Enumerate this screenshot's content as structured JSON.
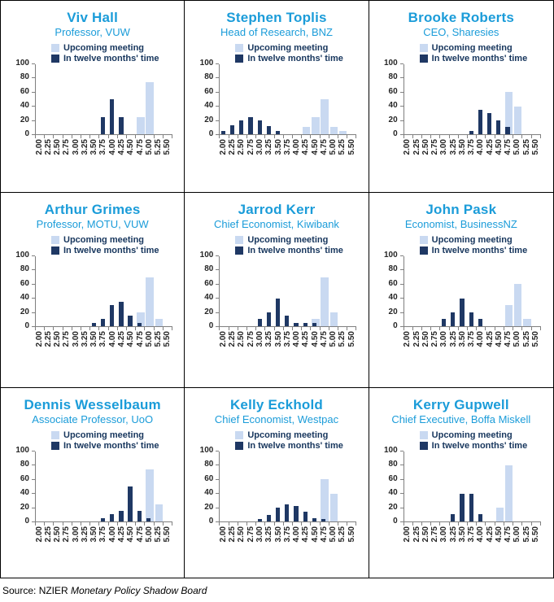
{
  "page": {
    "source_prefix": "Source: NZIER ",
    "source_title": "Monetary Policy Shadow Board"
  },
  "legend": {
    "series1": "Upcoming meeting",
    "series2": "In twelve months' time"
  },
  "colors": {
    "accent_blue": "#1B9CD9",
    "light_bar": "#C9D9F1",
    "dark_bar": "#1F3864",
    "legend_text": "#17365D",
    "axis_line": "#7F7F7F",
    "tick_text": "#262626"
  },
  "y_axis": {
    "ticks": [
      0,
      20,
      40,
      60,
      80,
      100
    ],
    "max": 100
  },
  "categories": [
    "2.00",
    "2.25",
    "2.50",
    "2.75",
    "3.00",
    "3.25",
    "3.50",
    "3.75",
    "4.00",
    "4.25",
    "4.50",
    "4.75",
    "5.00",
    "5.25",
    "5.50"
  ],
  "chart_data": [
    {
      "type": "bar",
      "title": "Viv Hall",
      "subtitle": "Professor, VUW",
      "ylim": [
        0,
        100
      ],
      "series": [
        {
          "name": "Upcoming meeting",
          "values": [
            0,
            0,
            0,
            0,
            0,
            0,
            0,
            0,
            0,
            0,
            0,
            25,
            75,
            0,
            0
          ]
        },
        {
          "name": "In twelve months' time",
          "values": [
            0,
            0,
            0,
            0,
            0,
            0,
            0,
            25,
            50,
            25,
            0,
            0,
            0,
            0,
            0
          ]
        }
      ]
    },
    {
      "type": "bar",
      "title": "Stephen Toplis",
      "subtitle": "Head of Research, BNZ",
      "ylim": [
        0,
        100
      ],
      "series": [
        {
          "name": "Upcoming meeting",
          "values": [
            0,
            0,
            0,
            0,
            0,
            0,
            0,
            0,
            0,
            10,
            25,
            50,
            10,
            5,
            0
          ]
        },
        {
          "name": "In twelve months' time",
          "values": [
            5,
            13,
            20,
            25,
            20,
            12,
            5,
            0,
            0,
            0,
            0,
            0,
            0,
            0,
            0
          ]
        }
      ]
    },
    {
      "type": "bar",
      "title": "Brooke Roberts",
      "subtitle": "CEO, Sharesies",
      "ylim": [
        0,
        100
      ],
      "series": [
        {
          "name": "Upcoming meeting",
          "values": [
            0,
            0,
            0,
            0,
            0,
            0,
            0,
            0,
            0,
            0,
            0,
            60,
            40,
            0,
            0
          ]
        },
        {
          "name": "In twelve months' time",
          "values": [
            0,
            0,
            0,
            0,
            0,
            0,
            0,
            5,
            35,
            30,
            20,
            10,
            0,
            0,
            0
          ]
        }
      ]
    },
    {
      "type": "bar",
      "title": "Arthur Grimes",
      "subtitle": "Professor, MOTU, VUW",
      "ylim": [
        0,
        100
      ],
      "series": [
        {
          "name": "Upcoming meeting",
          "values": [
            0,
            0,
            0,
            0,
            0,
            0,
            0,
            0,
            0,
            0,
            0,
            20,
            70,
            10,
            0
          ]
        },
        {
          "name": "In twelve months' time",
          "values": [
            0,
            0,
            0,
            0,
            0,
            0,
            5,
            10,
            30,
            35,
            15,
            5,
            0,
            0,
            0
          ]
        }
      ]
    },
    {
      "type": "bar",
      "title": "Jarrod Kerr",
      "subtitle": "Chief Economist, Kiwibank",
      "ylim": [
        0,
        100
      ],
      "series": [
        {
          "name": "Upcoming meeting",
          "values": [
            0,
            0,
            0,
            0,
            0,
            0,
            0,
            0,
            0,
            0,
            10,
            70,
            20,
            0,
            0
          ]
        },
        {
          "name": "In twelve months' time",
          "values": [
            0,
            0,
            0,
            0,
            10,
            20,
            40,
            15,
            5,
            5,
            5,
            0,
            0,
            0,
            0
          ]
        }
      ]
    },
    {
      "type": "bar",
      "title": "John Pask",
      "subtitle": "Economist, BusinessNZ",
      "ylim": [
        0,
        100
      ],
      "series": [
        {
          "name": "Upcoming meeting",
          "values": [
            0,
            0,
            0,
            0,
            0,
            0,
            0,
            0,
            0,
            0,
            0,
            30,
            60,
            10,
            0
          ]
        },
        {
          "name": "In twelve months' time",
          "values": [
            0,
            0,
            0,
            0,
            10,
            20,
            40,
            20,
            10,
            0,
            0,
            0,
            0,
            0,
            0
          ]
        }
      ]
    },
    {
      "type": "bar",
      "title": "Dennis Wesselbaum",
      "subtitle": "Associate Professor, UoO",
      "ylim": [
        0,
        100
      ],
      "series": [
        {
          "name": "Upcoming meeting",
          "values": [
            0,
            0,
            0,
            0,
            0,
            0,
            0,
            0,
            0,
            0,
            0,
            0,
            75,
            25,
            0
          ]
        },
        {
          "name": "In twelve months' time",
          "values": [
            0,
            0,
            0,
            0,
            0,
            0,
            0,
            5,
            10,
            15,
            50,
            15,
            5,
            0,
            0
          ]
        }
      ]
    },
    {
      "type": "bar",
      "title": "Kelly Eckhold",
      "subtitle": "Chief Economist, Westpac",
      "ylim": [
        0,
        100
      ],
      "series": [
        {
          "name": "Upcoming meeting",
          "values": [
            0,
            0,
            0,
            0,
            0,
            0,
            0,
            0,
            0,
            0,
            0,
            60,
            40,
            0,
            0
          ]
        },
        {
          "name": "In twelve months' time",
          "values": [
            0,
            0,
            0,
            0,
            3,
            9,
            20,
            24,
            22,
            14,
            5,
            3,
            0,
            0,
            0
          ]
        }
      ]
    },
    {
      "type": "bar",
      "title": "Kerry Gupwell",
      "subtitle": "Chief Executive, Boffa Miskell",
      "ylim": [
        0,
        100
      ],
      "series": [
        {
          "name": "Upcoming meeting",
          "values": [
            0,
            0,
            0,
            0,
            0,
            0,
            0,
            0,
            0,
            0,
            20,
            80,
            0,
            0,
            0
          ]
        },
        {
          "name": "In twelve months' time",
          "values": [
            0,
            0,
            0,
            0,
            0,
            10,
            40,
            40,
            10,
            0,
            0,
            0,
            0,
            0,
            0
          ]
        }
      ]
    }
  ]
}
